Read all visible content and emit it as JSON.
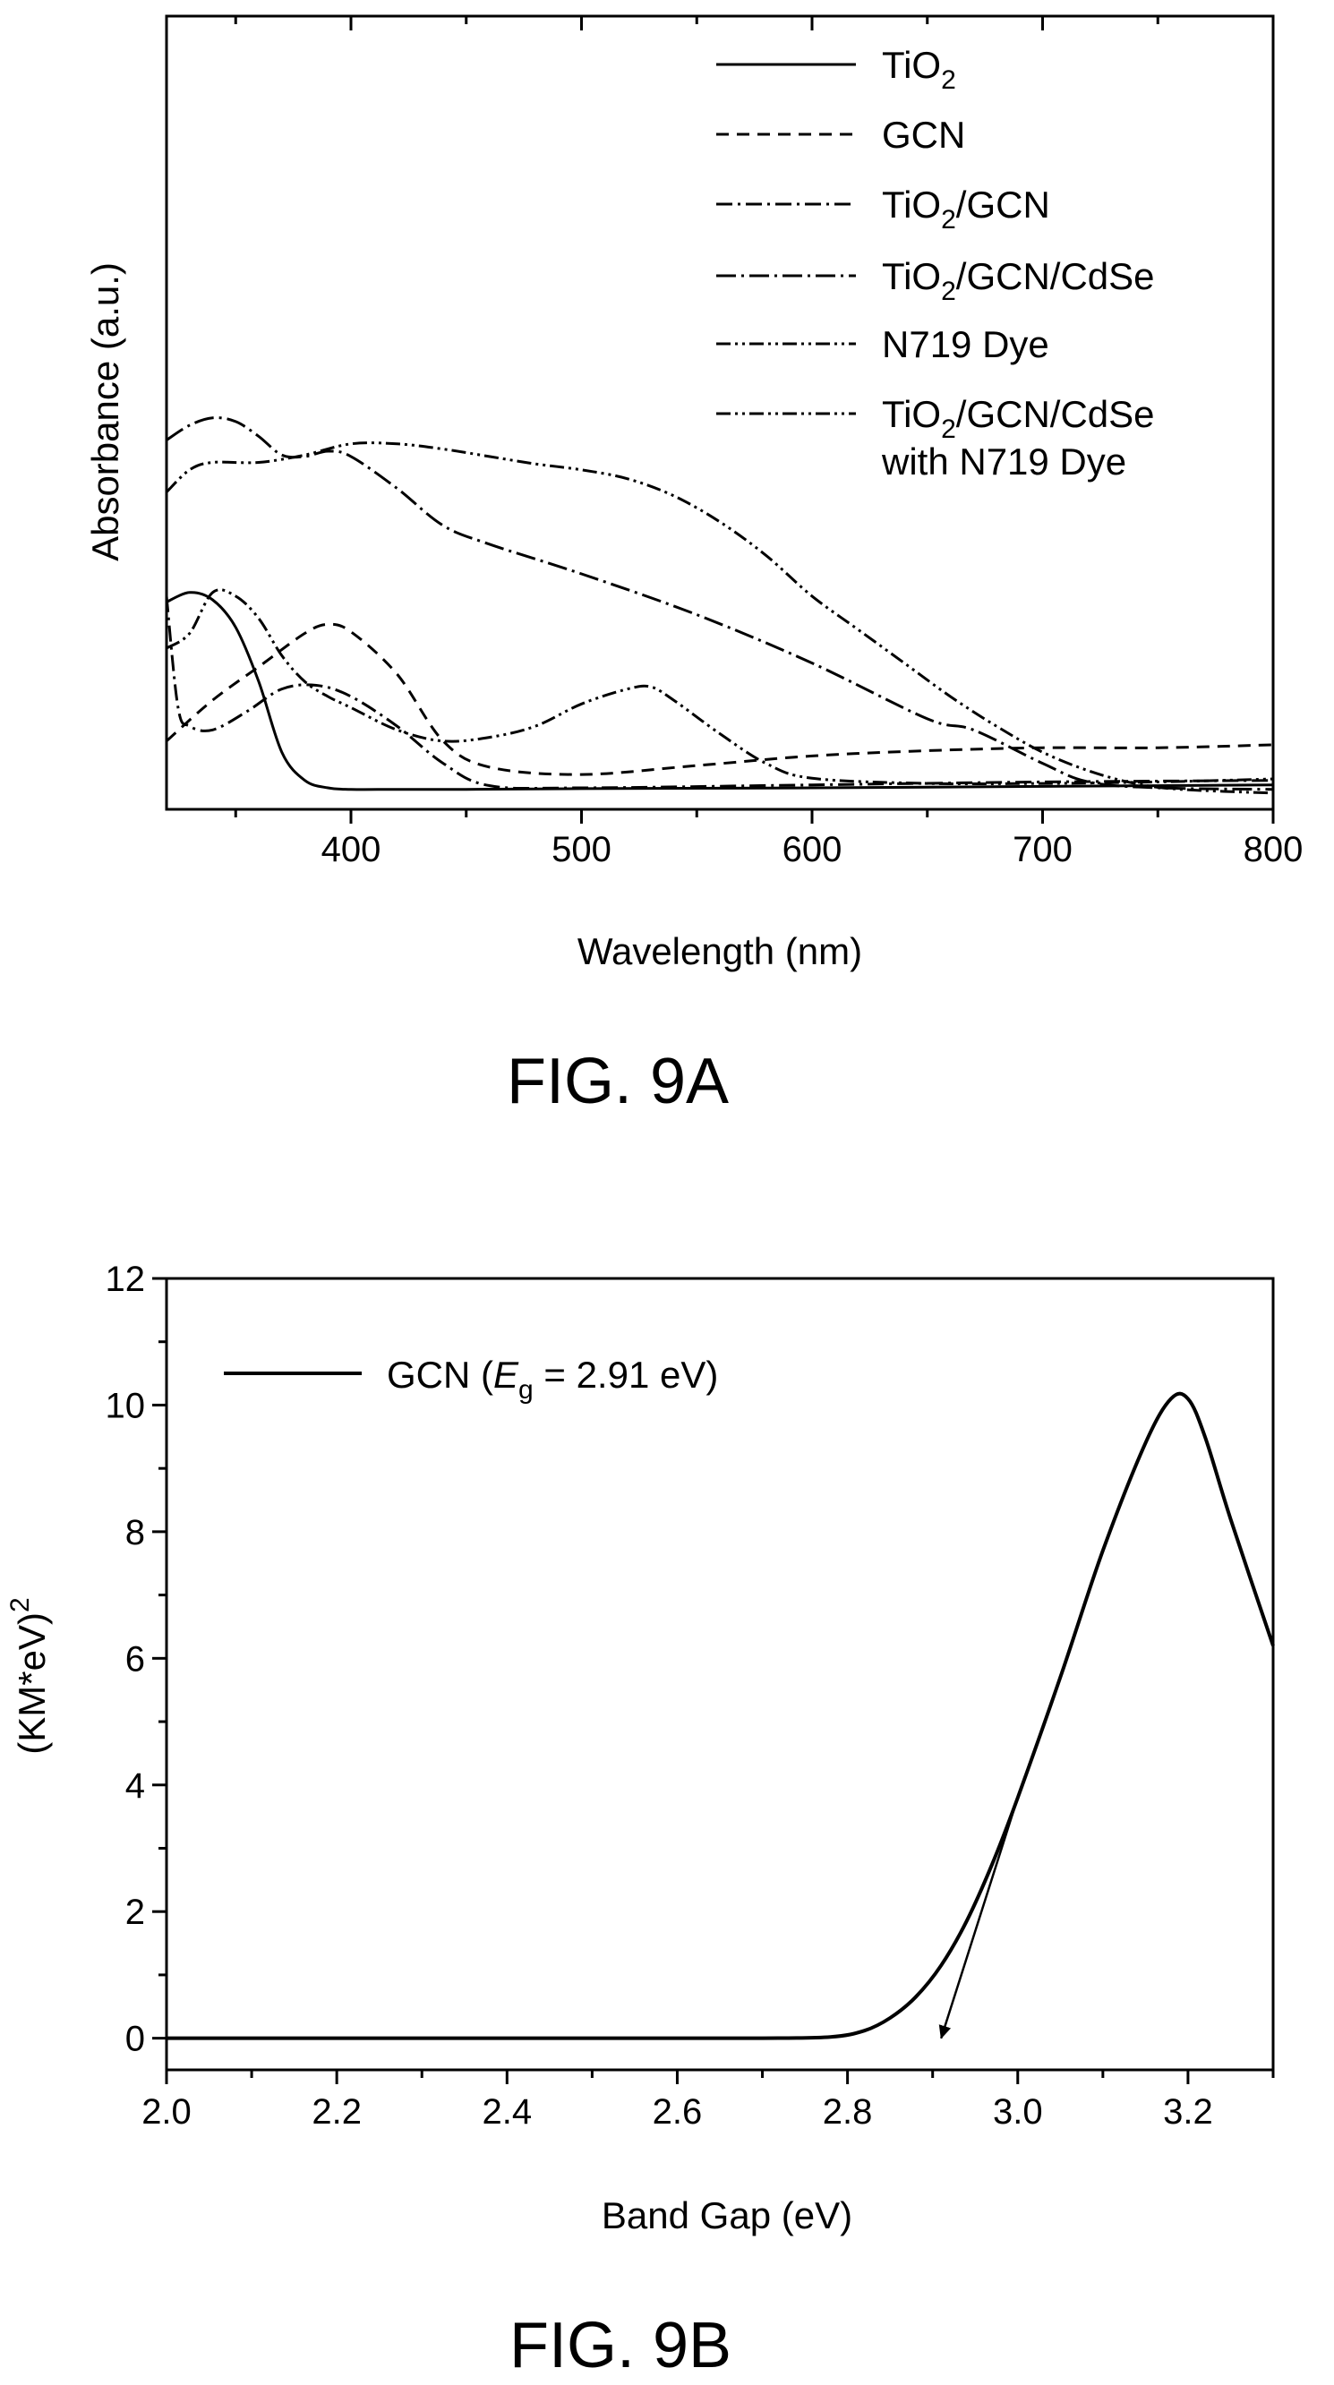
{
  "colors": {
    "ink": "#000000",
    "background": "#ffffff"
  },
  "captions": {
    "fig_a": "FIG. 9A",
    "fig_b": "FIG. 9B"
  },
  "chart_data": [
    {
      "type": "line",
      "title": "",
      "xlabel": "Wavelength (nm)",
      "ylabel": "Absorbance (a.u.)",
      "xlim": [
        320,
        800
      ],
      "ylim": [
        0,
        1
      ],
      "xticks": [
        "400",
        "500",
        "600",
        "700",
        "800"
      ],
      "yticks_shown": false,
      "grid": false,
      "legend_position": "top-right",
      "series": [
        {
          "name": "TiO₂",
          "legend_label": "TiO",
          "legend_sub": "2",
          "legend_after": "",
          "dash": "none",
          "x": [
            320,
            330,
            340,
            350,
            360,
            370,
            380,
            390,
            400,
            420,
            450,
            500,
            600,
            700,
            800
          ],
          "y": [
            0.262,
            0.275,
            0.265,
            0.228,
            0.155,
            0.06,
            0.022,
            0.012,
            0.01,
            0.01,
            0.01,
            0.011,
            0.012,
            0.014,
            0.016
          ]
        },
        {
          "name": "GCN",
          "legend_label": "GCN",
          "legend_sub": "",
          "legend_after": "",
          "dash": "14,9",
          "x": [
            320,
            340,
            360,
            380,
            390,
            400,
            420,
            440,
            460,
            500,
            550,
            600,
            650,
            700,
            750,
            800
          ],
          "y": [
            0.075,
            0.13,
            0.175,
            0.22,
            0.232,
            0.222,
            0.165,
            0.075,
            0.04,
            0.03,
            0.042,
            0.055,
            0.062,
            0.066,
            0.066,
            0.07
          ]
        },
        {
          "name": "TiO₂/GCN",
          "legend_label": "TiO",
          "legend_sub": "2",
          "legend_after": "/GCN",
          "dash": "18,6,3,6",
          "x": [
            320,
            325,
            330,
            340,
            355,
            370,
            385,
            400,
            420,
            440,
            460,
            500,
            600,
            700,
            800
          ],
          "y": [
            0.27,
            0.12,
            0.095,
            0.09,
            0.115,
            0.145,
            0.15,
            0.135,
            0.095,
            0.045,
            0.015,
            0.012,
            0.016,
            0.02,
            0.022
          ]
        },
        {
          "name": "TiO₂/GCN/CdSe",
          "legend_label": "TiO",
          "legend_sub": "2",
          "legend_after": "/GCN/CdSe",
          "dash": "22,6,3,6",
          "x": [
            320,
            330,
            340,
            350,
            360,
            370,
            380,
            390,
            400,
            420,
            440,
            460,
            500,
            550,
            600,
            650,
            670,
            700,
            720,
            750,
            800
          ],
          "y": [
            0.48,
            0.5,
            0.51,
            0.505,
            0.485,
            0.46,
            0.458,
            0.465,
            0.458,
            0.415,
            0.365,
            0.34,
            0.3,
            0.245,
            0.18,
            0.105,
            0.09,
            0.045,
            0.02,
            0.012,
            0.01
          ]
        },
        {
          "name": "N719 Dye",
          "legend_label": "N719 Dye",
          "legend_sub": "",
          "legend_after": "",
          "dash": "16,5,3,5,3,5",
          "x": [
            320,
            330,
            340,
            350,
            360,
            370,
            380,
            390,
            400,
            420,
            440,
            460,
            480,
            500,
            520,
            530,
            540,
            560,
            580,
            600,
            650,
            700,
            750,
            800
          ],
          "y": [
            0.2,
            0.22,
            0.275,
            0.27,
            0.24,
            0.19,
            0.155,
            0.135,
            0.12,
            0.09,
            0.075,
            0.08,
            0.095,
            0.125,
            0.145,
            0.148,
            0.13,
            0.085,
            0.045,
            0.025,
            0.018,
            0.018,
            0.02,
            0.024
          ]
        },
        {
          "name": "TiO₂/GCN/CdSe with N719 Dye",
          "legend_label": "TiO",
          "legend_sub": "2",
          "legend_after": "/GCN/CdSe",
          "legend_line2": "with N719 Dye",
          "dash": "16,5,3,5,3,5",
          "x": [
            320,
            330,
            340,
            360,
            380,
            400,
            420,
            440,
            460,
            480,
            500,
            520,
            540,
            560,
            580,
            600,
            620,
            640,
            660,
            680,
            700,
            720,
            740,
            760,
            800
          ],
          "y": [
            0.41,
            0.44,
            0.45,
            0.45,
            0.46,
            0.475,
            0.475,
            0.468,
            0.458,
            0.448,
            0.44,
            0.428,
            0.405,
            0.37,
            0.325,
            0.27,
            0.225,
            0.18,
            0.135,
            0.095,
            0.06,
            0.035,
            0.018,
            0.01,
            0.005
          ]
        }
      ]
    },
    {
      "type": "line",
      "title": "",
      "xlabel": "Band Gap (eV)",
      "ylabel": "(KM*eV)",
      "ylabel_sup": "2",
      "xlim": [
        2.0,
        3.3
      ],
      "ylim": [
        -0.5,
        12
      ],
      "xticks": [
        "2.0",
        "2.2",
        "2.4",
        "2.6",
        "2.8",
        "3.0",
        "3.2"
      ],
      "yticks": [
        "0",
        "2",
        "4",
        "6",
        "8",
        "10",
        "12"
      ],
      "grid": false,
      "legend_position": "top-left",
      "legend": {
        "prefix": "GCN (",
        "var": "E",
        "sub": "g",
        "suffix": " = 2.91 eV)"
      },
      "series": [
        {
          "name": "GCN",
          "x": [
            2.0,
            2.5,
            2.7,
            2.78,
            2.82,
            2.85,
            2.88,
            2.91,
            2.94,
            2.97,
            3.0,
            3.05,
            3.1,
            3.15,
            3.18,
            3.2,
            3.22,
            3.25,
            3.3
          ],
          "y": [
            0,
            0,
            0,
            0.02,
            0.12,
            0.32,
            0.65,
            1.15,
            1.85,
            2.75,
            3.8,
            5.7,
            7.7,
            9.4,
            10.1,
            10.1,
            9.5,
            8.2,
            6.2
          ]
        }
      ],
      "tangent": {
        "x": [
          3.0,
          2.91
        ],
        "y": [
          3.8,
          0
        ]
      }
    }
  ]
}
